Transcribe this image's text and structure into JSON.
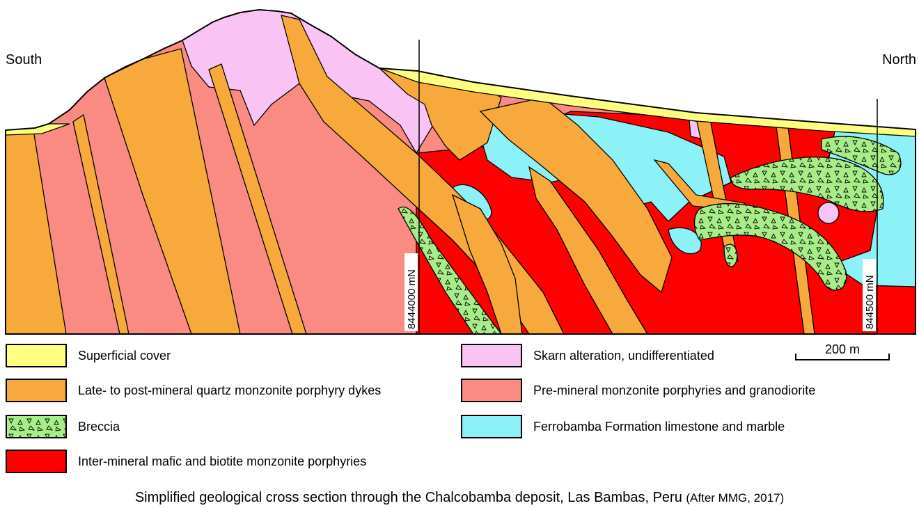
{
  "colors": {
    "cover": "#FFFF80",
    "dykes": "#F7A93C",
    "breccia": "#A8EE88",
    "inter_mineral": "#FF0000",
    "skarn": "#F9C3F4",
    "pre_mineral": "#F98B82",
    "limestone": "#8CF2F8",
    "outline": "#000000"
  },
  "labels": {
    "south": "South",
    "north": "North",
    "grid_line_1": "8444000 mN",
    "grid_line_2": "844500 mN",
    "scale": "200 m"
  },
  "legend": [
    {
      "label": "Superficial cover",
      "color_key": "cover",
      "pattern": "none"
    },
    {
      "label": "Late- to post-mineral quartz monzonite porphyry dykes",
      "color_key": "dykes",
      "pattern": "none"
    },
    {
      "label": "Breccia",
      "color_key": "breccia",
      "pattern": "triangles"
    },
    {
      "label": "Inter-mineral mafic and biotite monzonite porphyries",
      "color_key": "inter_mineral",
      "pattern": "none"
    },
    {
      "label": "Skarn alteration, undifferentiated",
      "color_key": "skarn",
      "pattern": "none"
    },
    {
      "label": "Pre-mineral monzonite porphyries and granodiorite",
      "color_key": "pre_mineral",
      "pattern": "none"
    },
    {
      "label": "Ferrobamba Formation limestone and marble",
      "color_key": "limestone",
      "pattern": "none"
    }
  ],
  "caption": {
    "main": "Simplified geological cross section through the Chalcobamba deposit, Las Bambas, Peru",
    "source": "(After MMG, 2017)"
  }
}
